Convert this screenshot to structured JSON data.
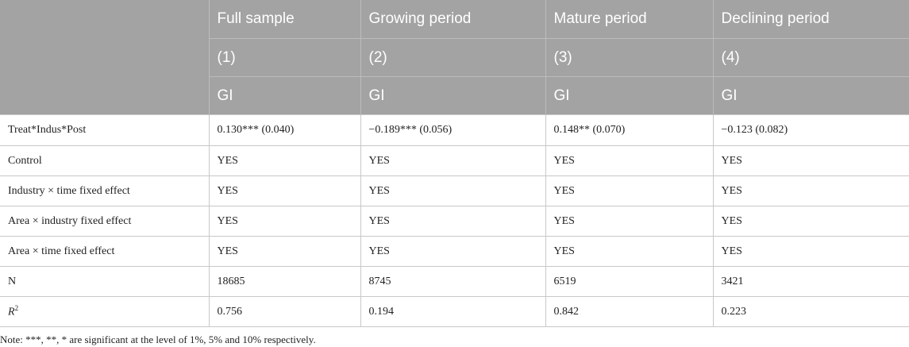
{
  "table": {
    "headers": {
      "row1": [
        "Full sample",
        "Growing period",
        "Mature period",
        "Declining period"
      ],
      "row2": [
        "(1)",
        "(2)",
        "(3)",
        "(4)"
      ],
      "row3": [
        "GI",
        "GI",
        "GI",
        "GI"
      ]
    },
    "rows": [
      {
        "label": "Treat*Indus*Post",
        "cells": [
          "0.130*** (0.040)",
          "−0.189*** (0.056)",
          "0.148** (0.070)",
          "−0.123 (0.082)"
        ]
      },
      {
        "label": "Control",
        "cells": [
          "YES",
          "YES",
          "YES",
          "YES"
        ]
      },
      {
        "label": "Industry × time fixed effect",
        "cells": [
          "YES",
          "YES",
          "YES",
          "YES"
        ]
      },
      {
        "label": "Area × industry fixed effect",
        "cells": [
          "YES",
          "YES",
          "YES",
          "YES"
        ]
      },
      {
        "label": "Area × time fixed effect",
        "cells": [
          "YES",
          "YES",
          "YES",
          "YES"
        ]
      },
      {
        "label": "N",
        "cells": [
          "18685",
          "8745",
          "6519",
          "3421"
        ]
      },
      {
        "label_main": "R",
        "label_sup": "2",
        "cells": [
          "0.756",
          "0.194",
          "0.842",
          "0.223"
        ]
      }
    ]
  },
  "note": "Note: ***, **, * are significant at the level of 1%, 5% and 10% respectively."
}
